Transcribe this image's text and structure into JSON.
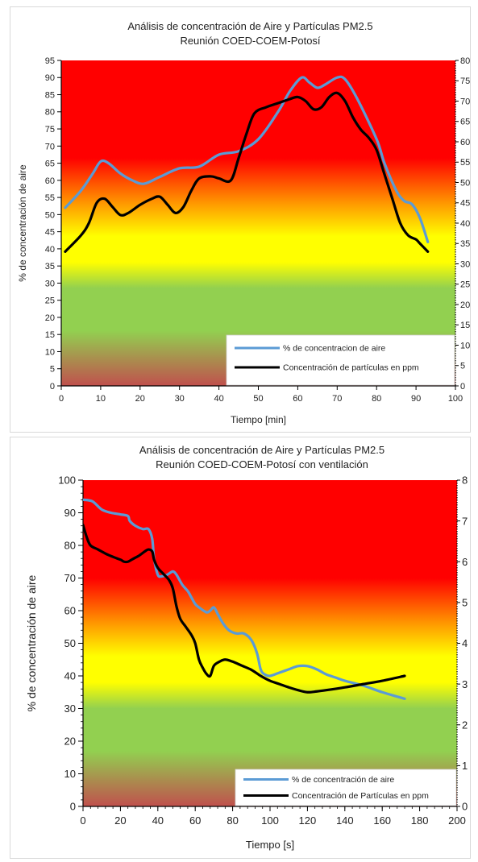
{
  "colors": {
    "air_series": "#5b9bd5",
    "particles_series": "#000000",
    "band_red": "#ff0000",
    "band_yellow": "#ffff00",
    "band_green": "#92d050",
    "band_brown": "#c0504d"
  },
  "chart_data": [
    {
      "type": "line",
      "title": "Análisis de concentración de Aire y Partículas PM2.5",
      "subtitle": "Reunión COED-COEM-Potosí",
      "xlabel": "Tiempo  [min]",
      "ylabel": "% de concentración de aire",
      "xlim": [
        0,
        100
      ],
      "ylim": [
        0,
        95
      ],
      "y2lim": [
        0,
        80
      ],
      "x_ticks": [
        "0",
        "10",
        "20",
        "30",
        "40",
        "50",
        "60",
        "70",
        "80",
        "90",
        "100"
      ],
      "y_ticks": [
        "0",
        "5",
        "10",
        "15",
        "20",
        "25",
        "30",
        "35",
        "40",
        "45",
        "50",
        "55",
        "60",
        "65",
        "70",
        "75",
        "80",
        "85",
        "90",
        "95"
      ],
      "y2_ticks": [
        "0",
        "5",
        "10",
        "15",
        "20",
        "25",
        "30",
        "35",
        "40",
        "45",
        "50",
        "55",
        "60",
        "65",
        "70",
        "75",
        "80"
      ],
      "grid": false,
      "legend_position": "bottom-right",
      "background_bands": "red top, yellow middle, green lower, brown at bottom",
      "series": [
        {
          "name": "% de concentracion de aire",
          "axis": "left",
          "points": [
            [
              1,
              52
            ],
            [
              5,
              57
            ],
            [
              8,
              62
            ],
            [
              10,
              65.5
            ],
            [
              12,
              65
            ],
            [
              15,
              62
            ],
            [
              18,
              60
            ],
            [
              21,
              59
            ],
            [
              25,
              61
            ],
            [
              30,
              63.5
            ],
            [
              35,
              64
            ],
            [
              40,
              67.5
            ],
            [
              45,
              68.5
            ],
            [
              50,
              72
            ],
            [
              55,
              80
            ],
            [
              58,
              86
            ],
            [
              61,
              90
            ],
            [
              63,
              88.5
            ],
            [
              65,
              87
            ],
            [
              67,
              88
            ],
            [
              70,
              90
            ],
            [
              72,
              89.5
            ],
            [
              75,
              84
            ],
            [
              80,
              72
            ],
            [
              82,
              65
            ],
            [
              85,
              57
            ],
            [
              87,
              54
            ],
            [
              89,
              53
            ],
            [
              91,
              49
            ],
            [
              93,
              42
            ]
          ]
        },
        {
          "name": "Concentración de partículas en ppm",
          "axis": "right",
          "points": [
            [
              1,
              33
            ],
            [
              5,
              37
            ],
            [
              7,
              40
            ],
            [
              9,
              45
            ],
            [
              11,
              46
            ],
            [
              13,
              44
            ],
            [
              15,
              42
            ],
            [
              17,
              42.5
            ],
            [
              20,
              44.5
            ],
            [
              23,
              46
            ],
            [
              25,
              46.5
            ],
            [
              27,
              44.5
            ],
            [
              29,
              42.5
            ],
            [
              31,
              44
            ],
            [
              33,
              48
            ],
            [
              35,
              51
            ],
            [
              38,
              51.5
            ],
            [
              40,
              51
            ],
            [
              43,
              50.5
            ],
            [
              45,
              56
            ],
            [
              47,
              62
            ],
            [
              49,
              67
            ],
            [
              52,
              68.5
            ],
            [
              55,
              69.5
            ],
            [
              58,
              70.5
            ],
            [
              60,
              71
            ],
            [
              62,
              70
            ],
            [
              64,
              68
            ],
            [
              66,
              68.5
            ],
            [
              68,
              71
            ],
            [
              70,
              72
            ],
            [
              72,
              70
            ],
            [
              74,
              66
            ],
            [
              76,
              63
            ],
            [
              78,
              61
            ],
            [
              80,
              58
            ],
            [
              82,
              52
            ],
            [
              84,
              46
            ],
            [
              86,
              40
            ],
            [
              88,
              37
            ],
            [
              90,
              36
            ],
            [
              91,
              35
            ],
            [
              93,
              33
            ]
          ]
        }
      ]
    },
    {
      "type": "line",
      "title": "Análisis de concentración de Aire y Partículas PM2.5",
      "subtitle": "Reunión COED-COEM-Potosí con ventilación",
      "xlabel": "Tiempo [s]",
      "ylabel": "% de concentración de aire",
      "xlim": [
        0,
        200
      ],
      "ylim": [
        0,
        100
      ],
      "y2lim": [
        0,
        8
      ],
      "x_ticks": [
        "0",
        "20",
        "40",
        "60",
        "80",
        "100",
        "120",
        "140",
        "160",
        "180",
        "200"
      ],
      "y_ticks": [
        "0",
        "10",
        "20",
        "30",
        "40",
        "50",
        "60",
        "70",
        "80",
        "90",
        "100"
      ],
      "y2_ticks": [
        "0",
        "1",
        "2",
        "3",
        "4",
        "5",
        "6",
        "7",
        "8"
      ],
      "grid": false,
      "legend_position": "bottom-right",
      "background_bands": "red top, yellow middle, green lower, brown at bottom",
      "series": [
        {
          "name": "% de concentración de aire",
          "axis": "left",
          "points": [
            [
              0,
              94
            ],
            [
              5,
              93.5
            ],
            [
              10,
              91
            ],
            [
              15,
              90
            ],
            [
              20,
              89.5
            ],
            [
              24,
              89
            ],
            [
              25,
              87.5
            ],
            [
              28,
              86
            ],
            [
              32,
              85
            ],
            [
              35,
              85
            ],
            [
              37,
              82
            ],
            [
              38,
              76
            ],
            [
              40,
              71
            ],
            [
              42,
              70.5
            ],
            [
              45,
              71
            ],
            [
              48,
              72
            ],
            [
              50,
              71
            ],
            [
              53,
              68
            ],
            [
              56,
              66
            ],
            [
              58,
              64
            ],
            [
              60,
              62
            ],
            [
              62,
              61
            ],
            [
              66,
              59.5
            ],
            [
              68,
              60
            ],
            [
              70,
              61
            ],
            [
              72,
              59
            ],
            [
              75,
              56
            ],
            [
              78,
              54
            ],
            [
              82,
              53
            ],
            [
              86,
              53
            ],
            [
              90,
              51
            ],
            [
              93,
              47
            ],
            [
              95,
              42
            ],
            [
              97,
              40.5
            ],
            [
              100,
              40
            ],
            [
              105,
              41
            ],
            [
              110,
              42
            ],
            [
              115,
              43
            ],
            [
              120,
              43
            ],
            [
              125,
              42
            ],
            [
              130,
              40.5
            ],
            [
              135,
              39.5
            ],
            [
              140,
              38.5
            ],
            [
              150,
              37
            ],
            [
              160,
              35
            ],
            [
              172,
              33
            ]
          ]
        },
        {
          "name": "Concentración de Partículas en ppm",
          "axis": "right",
          "points": [
            [
              0,
              6.9
            ],
            [
              2,
              6.6
            ],
            [
              4,
              6.4
            ],
            [
              8,
              6.3
            ],
            [
              12,
              6.2
            ],
            [
              16,
              6.12
            ],
            [
              20,
              6.05
            ],
            [
              22,
              6.0
            ],
            [
              24,
              6.0
            ],
            [
              26,
              6.05
            ],
            [
              28,
              6.1
            ],
            [
              30,
              6.15
            ],
            [
              33,
              6.25
            ],
            [
              35,
              6.3
            ],
            [
              37,
              6.25
            ],
            [
              38,
              6.05
            ],
            [
              40,
              5.85
            ],
            [
              43,
              5.7
            ],
            [
              46,
              5.55
            ],
            [
              48,
              5.35
            ],
            [
              50,
              4.9
            ],
            [
              52,
              4.6
            ],
            [
              55,
              4.4
            ],
            [
              58,
              4.2
            ],
            [
              60,
              4.0
            ],
            [
              62,
              3.6
            ],
            [
              64,
              3.4
            ],
            [
              66,
              3.25
            ],
            [
              68,
              3.2
            ],
            [
              70,
              3.45
            ],
            [
              73,
              3.55
            ],
            [
              76,
              3.6
            ],
            [
              80,
              3.55
            ],
            [
              85,
              3.45
            ],
            [
              90,
              3.35
            ],
            [
              95,
              3.2
            ],
            [
              100,
              3.08
            ],
            [
              105,
              3.0
            ],
            [
              110,
              2.92
            ],
            [
              115,
              2.85
            ],
            [
              120,
              2.8
            ],
            [
              125,
              2.82
            ],
            [
              130,
              2.85
            ],
            [
              140,
              2.92
            ],
            [
              150,
              3.0
            ],
            [
              160,
              3.08
            ],
            [
              172,
              3.2
            ]
          ]
        }
      ]
    }
  ]
}
